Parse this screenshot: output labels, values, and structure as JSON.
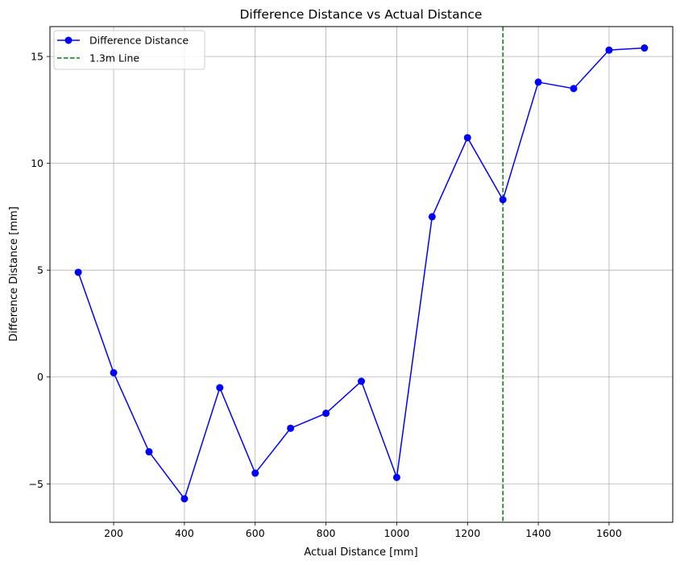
{
  "chart_data": {
    "type": "line",
    "title": "Difference Distance vs Actual Distance",
    "xlabel": "Actual Distance [mm]",
    "ylabel": "Difference Distance [mm]",
    "xlim": [
      20,
      1780
    ],
    "ylim": [
      -6.8,
      16.4
    ],
    "xticks": [
      200,
      400,
      600,
      800,
      1000,
      1200,
      1400,
      1600
    ],
    "yticks": [
      -5,
      0,
      5,
      10,
      15
    ],
    "xtick_labels": [
      "200",
      "400",
      "600",
      "800",
      "1000",
      "1200",
      "1400",
      "1600"
    ],
    "ytick_labels": [
      "−5",
      "0",
      "5",
      "10",
      "15"
    ],
    "grid": true,
    "legend_position": "top-left",
    "series": [
      {
        "name": "Difference Distance",
        "color": "#0000ff",
        "marker": "circle",
        "x": [
          100,
          200,
          300,
          400,
          500,
          600,
          700,
          800,
          900,
          1000,
          1100,
          1200,
          1300,
          1400,
          1500,
          1600,
          1700
        ],
        "y": [
          4.9,
          0.2,
          -3.5,
          -5.7,
          -0.5,
          -4.5,
          -2.4,
          -1.7,
          -0.2,
          -4.7,
          7.5,
          11.2,
          8.3,
          13.8,
          13.5,
          15.3,
          15.4
        ]
      }
    ],
    "vlines": [
      {
        "name": "1.3m Line",
        "x": 1300,
        "color": "#008000",
        "style": "dashed"
      }
    ]
  }
}
